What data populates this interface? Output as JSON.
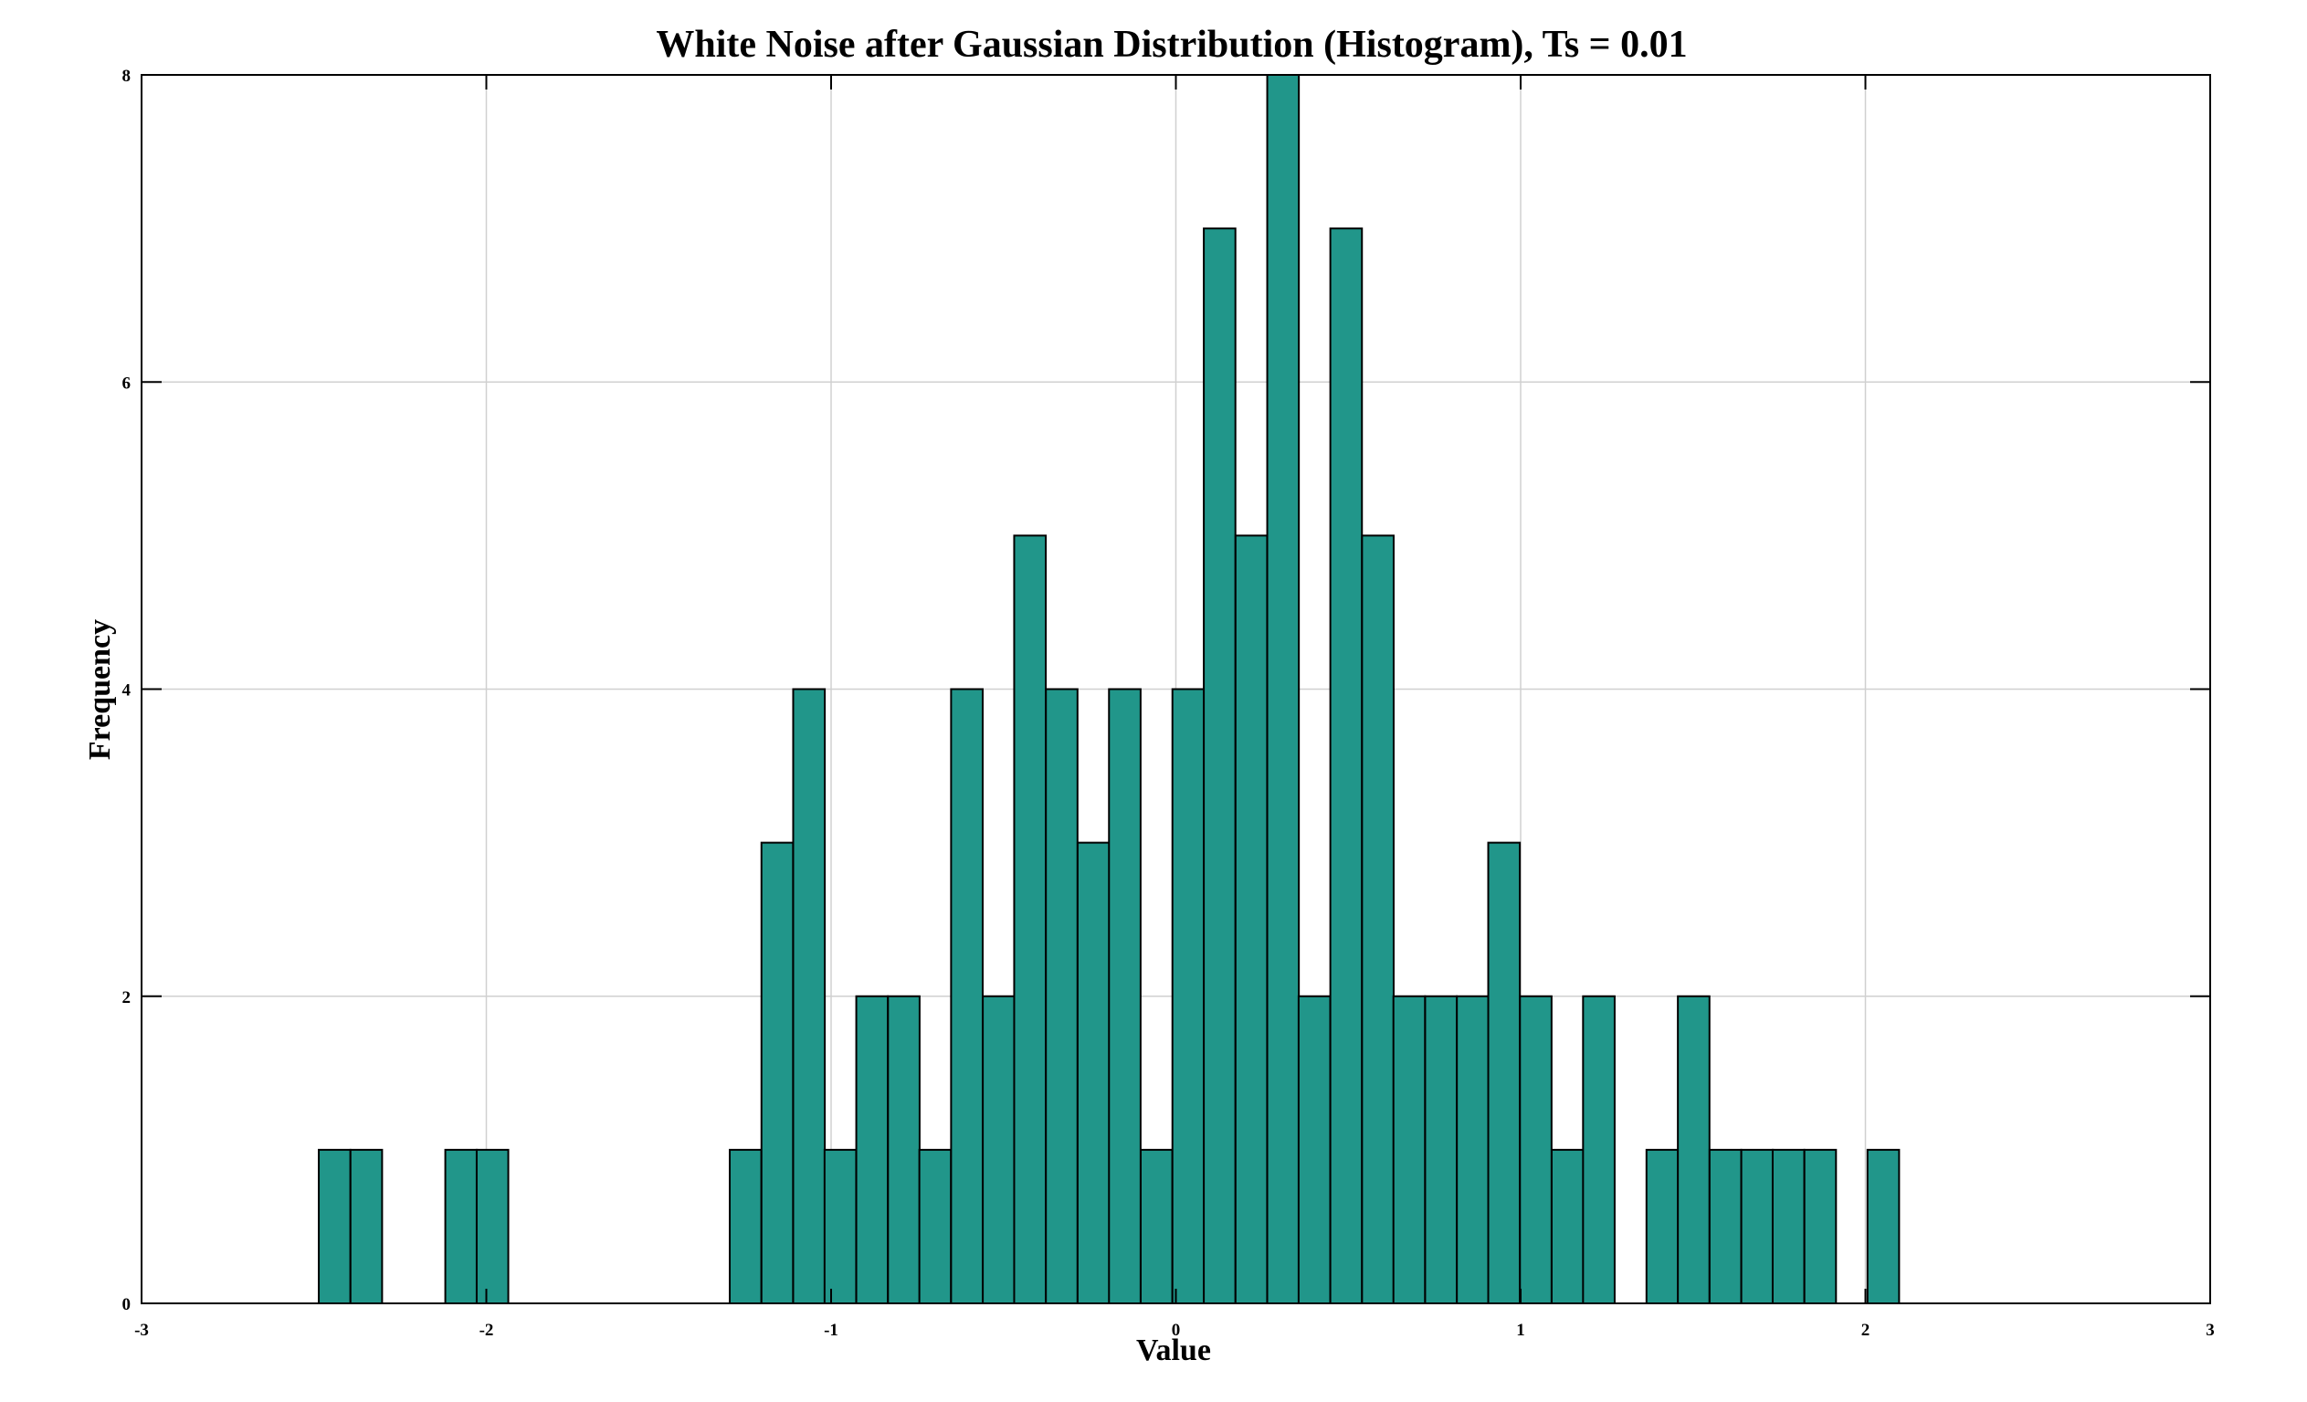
{
  "chart_data": {
    "type": "bar",
    "title": "White Noise after Gaussian Distribution (Histogram), Ts = 0.01",
    "xlabel": "Value",
    "ylabel": "Frequency",
    "xlim": [
      -3,
      3
    ],
    "ylim": [
      0,
      8
    ],
    "xticks": [
      -3,
      -2,
      -1,
      0,
      1,
      2,
      3
    ],
    "yticks": [
      0,
      2,
      4,
      6,
      8
    ],
    "grid": true,
    "legend": "none",
    "bin_width": 0.0917,
    "bins": [
      {
        "x_start": -2.486,
        "value": 1
      },
      {
        "x_start": -2.394,
        "value": 1
      },
      {
        "x_start": -2.119,
        "value": 1
      },
      {
        "x_start": -2.028,
        "value": 1
      },
      {
        "x_start": -1.294,
        "value": 1
      },
      {
        "x_start": -1.202,
        "value": 3
      },
      {
        "x_start": -1.11,
        "value": 4
      },
      {
        "x_start": -1.019,
        "value": 1
      },
      {
        "x_start": -0.927,
        "value": 2
      },
      {
        "x_start": -0.835,
        "value": 2
      },
      {
        "x_start": -0.744,
        "value": 1
      },
      {
        "x_start": -0.652,
        "value": 4
      },
      {
        "x_start": -0.56,
        "value": 2
      },
      {
        "x_start": -0.469,
        "value": 5
      },
      {
        "x_start": -0.377,
        "value": 4
      },
      {
        "x_start": -0.285,
        "value": 3
      },
      {
        "x_start": -0.194,
        "value": 4
      },
      {
        "x_start": -0.102,
        "value": 1
      },
      {
        "x_start": -0.01,
        "value": 4
      },
      {
        "x_start": 0.081,
        "value": 7
      },
      {
        "x_start": 0.173,
        "value": 5
      },
      {
        "x_start": 0.265,
        "value": 8
      },
      {
        "x_start": 0.356,
        "value": 2
      },
      {
        "x_start": 0.448,
        "value": 7
      },
      {
        "x_start": 0.54,
        "value": 5
      },
      {
        "x_start": 0.631,
        "value": 2
      },
      {
        "x_start": 0.723,
        "value": 2
      },
      {
        "x_start": 0.815,
        "value": 2
      },
      {
        "x_start": 0.906,
        "value": 3
      },
      {
        "x_start": 0.998,
        "value": 2
      },
      {
        "x_start": 1.09,
        "value": 1
      },
      {
        "x_start": 1.181,
        "value": 2
      },
      {
        "x_start": 1.365,
        "value": 1
      },
      {
        "x_start": 1.456,
        "value": 2
      },
      {
        "x_start": 1.548,
        "value": 1
      },
      {
        "x_start": 1.64,
        "value": 1
      },
      {
        "x_start": 1.731,
        "value": 1
      },
      {
        "x_start": 1.823,
        "value": 1
      },
      {
        "x_start": 2.006,
        "value": 1
      }
    ],
    "colors": {
      "bar_fill": "#21968A",
      "bar_edge": "#000000",
      "grid": "#d0d0d0",
      "axes": "#000000"
    }
  }
}
